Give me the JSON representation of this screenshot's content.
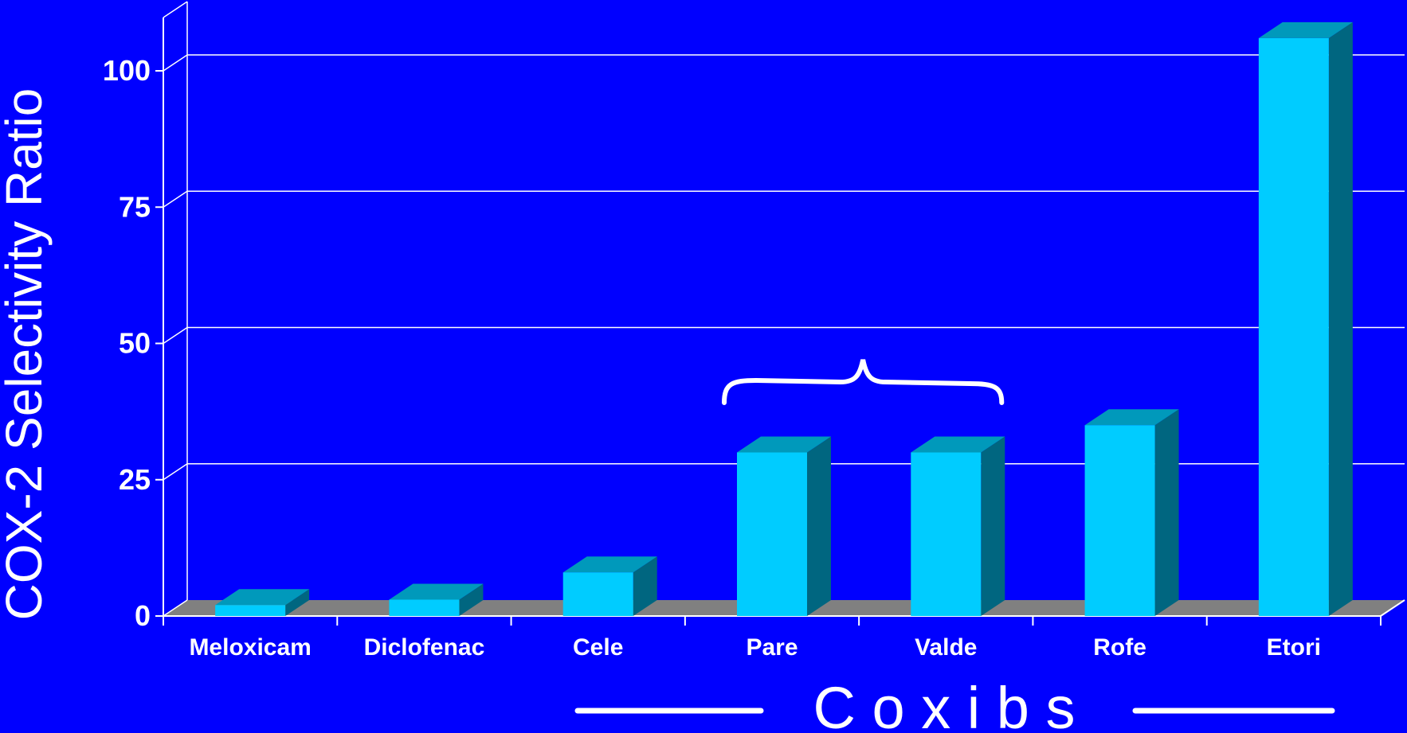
{
  "chart_data": {
    "type": "bar",
    "title": "",
    "ylabel": "COX-2 Selectivity Ratio",
    "xlabel": "",
    "ylim": [
      0,
      110
    ],
    "yticks": [
      0,
      25,
      50,
      75,
      100
    ],
    "categories": [
      "Meloxicam",
      "Diclofenac",
      "Cele",
      "Pare",
      "Valde",
      "Rofe",
      "Etori"
    ],
    "values": [
      2,
      3,
      8,
      30,
      30,
      35,
      106
    ],
    "grid": true,
    "three_d": true,
    "group_label": {
      "text": "C o x i b s",
      "covers": [
        "Cele",
        "Pare",
        "Valde",
        "Rofe",
        "Etori"
      ]
    },
    "brace_over": [
      "Pare",
      "Valde"
    ]
  },
  "colors": {
    "background": "#0000FF",
    "bar_front": "#00CCFF",
    "bar_top": "#0099BB",
    "bar_side": "#006680",
    "floor": "#808080",
    "grid": "#FFFFFF",
    "text": "#FFFFFF"
  }
}
